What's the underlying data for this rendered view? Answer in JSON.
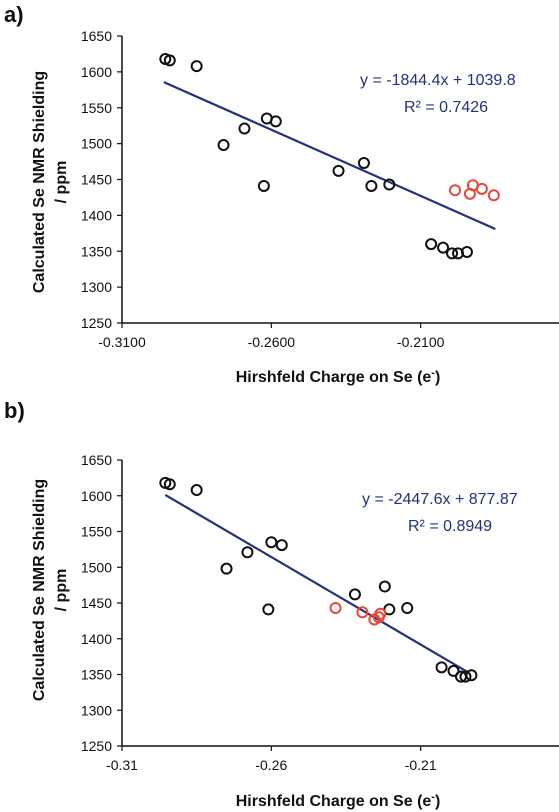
{
  "colors": {
    "axis": "#111111",
    "marker_black": "#111111",
    "marker_red": "#e8473a",
    "trendline": "#23317a"
  },
  "chart_data": [
    {
      "type": "scatter",
      "panel_label": "a)",
      "xlabel": "Hirshfeld Charge on Se (e",
      "xlabel_sup": "-",
      "xlabel_tail": ")",
      "ylabel_line1": "Calculated Se NMR Shielding",
      "ylabel_line2": "/ ppm",
      "xlim": [
        -0.31,
        -0.16
      ],
      "ylim": [
        1250,
        1650
      ],
      "x_ticks": [
        {
          "value": -0.31,
          "label": "-0.3100"
        },
        {
          "value": -0.26,
          "label": "-0.2600"
        },
        {
          "value": -0.21,
          "label": "-0.2100"
        }
      ],
      "y_ticks": [
        {
          "value": 1250,
          "label": "1250"
        },
        {
          "value": 1300,
          "label": "1300"
        },
        {
          "value": 1350,
          "label": "1350"
        },
        {
          "value": 1400,
          "label": "1400"
        },
        {
          "value": 1450,
          "label": "1450"
        },
        {
          "value": 1500,
          "label": "1500"
        },
        {
          "value": 1550,
          "label": "1550"
        },
        {
          "value": 1600,
          "label": "1600"
        },
        {
          "value": 1650,
          "label": "1650"
        }
      ],
      "grid": false,
      "trendline": {
        "equation": "y = -1844.4x + 1039.8",
        "r2": "R² = 0.7426",
        "slope": -1844.4,
        "intercept": 1039.8,
        "x_range": [
          -0.296,
          -0.185
        ]
      },
      "series": [
        {
          "color": "black",
          "points": [
            {
              "x": -0.2955,
              "y": 1618
            },
            {
              "x": -0.294,
              "y": 1616
            },
            {
              "x": -0.285,
              "y": 1608
            },
            {
              "x": -0.276,
              "y": 1498
            },
            {
              "x": -0.269,
              "y": 1521
            },
            {
              "x": -0.2625,
              "y": 1441
            },
            {
              "x": -0.2615,
              "y": 1535
            },
            {
              "x": -0.2585,
              "y": 1531
            },
            {
              "x": -0.2375,
              "y": 1462
            },
            {
              "x": -0.229,
              "y": 1473
            },
            {
              "x": -0.2265,
              "y": 1441
            },
            {
              "x": -0.2205,
              "y": 1443
            },
            {
              "x": -0.2065,
              "y": 1360
            },
            {
              "x": -0.2025,
              "y": 1355
            },
            {
              "x": -0.1995,
              "y": 1347
            },
            {
              "x": -0.1975,
              "y": 1347
            },
            {
              "x": -0.1945,
              "y": 1349
            }
          ]
        },
        {
          "color": "red",
          "points": [
            {
              "x": -0.1985,
              "y": 1435
            },
            {
              "x": -0.1925,
              "y": 1442
            },
            {
              "x": -0.1935,
              "y": 1430
            },
            {
              "x": -0.1895,
              "y": 1437
            },
            {
              "x": -0.1855,
              "y": 1428
            }
          ]
        }
      ]
    },
    {
      "type": "scatter",
      "panel_label": "b)",
      "xlabel": "Hirshfeld Charge on Se (e",
      "xlabel_sup": "-",
      "xlabel_tail": ")",
      "ylabel_line1": "Calculated Se NMR Shielding",
      "ylabel_line2": "/ ppm",
      "xlim": [
        -0.31,
        -0.16
      ],
      "ylim": [
        1250,
        1650
      ],
      "x_ticks": [
        {
          "value": -0.31,
          "label": "-0.31"
        },
        {
          "value": -0.26,
          "label": "-0.26"
        },
        {
          "value": -0.21,
          "label": "-0.21"
        }
      ],
      "y_ticks": [
        {
          "value": 1250,
          "label": "1250"
        },
        {
          "value": 1300,
          "label": "1300"
        },
        {
          "value": 1350,
          "label": "1350"
        },
        {
          "value": 1400,
          "label": "1400"
        },
        {
          "value": 1450,
          "label": "1450"
        },
        {
          "value": 1500,
          "label": "1500"
        },
        {
          "value": 1550,
          "label": "1550"
        },
        {
          "value": 1600,
          "label": "1600"
        },
        {
          "value": 1650,
          "label": "1650"
        }
      ],
      "grid": false,
      "trendline": {
        "equation": "y = -2447.6x + 877.87",
        "r2": "R² = 0.8949",
        "slope": -2447.6,
        "intercept": 877.87,
        "x_range": [
          -0.2955,
          -0.1945
        ]
      },
      "series": [
        {
          "color": "black",
          "points": [
            {
              "x": -0.2955,
              "y": 1618
            },
            {
              "x": -0.294,
              "y": 1616
            },
            {
              "x": -0.285,
              "y": 1608
            },
            {
              "x": -0.275,
              "y": 1498
            },
            {
              "x": -0.268,
              "y": 1521
            },
            {
              "x": -0.261,
              "y": 1441
            },
            {
              "x": -0.26,
              "y": 1535
            },
            {
              "x": -0.2565,
              "y": 1531
            },
            {
              "x": -0.232,
              "y": 1462
            },
            {
              "x": -0.222,
              "y": 1473
            },
            {
              "x": -0.2205,
              "y": 1441
            },
            {
              "x": -0.2145,
              "y": 1443
            },
            {
              "x": -0.203,
              "y": 1360
            },
            {
              "x": -0.199,
              "y": 1355
            },
            {
              "x": -0.1965,
              "y": 1347
            },
            {
              "x": -0.195,
              "y": 1347
            },
            {
              "x": -0.193,
              "y": 1349
            }
          ]
        },
        {
          "color": "red",
          "points": [
            {
              "x": -0.2385,
              "y": 1443
            },
            {
              "x": -0.2295,
              "y": 1437
            },
            {
              "x": -0.2255,
              "y": 1427
            },
            {
              "x": -0.224,
              "y": 1430
            },
            {
              "x": -0.2235,
              "y": 1435
            }
          ]
        }
      ]
    }
  ]
}
